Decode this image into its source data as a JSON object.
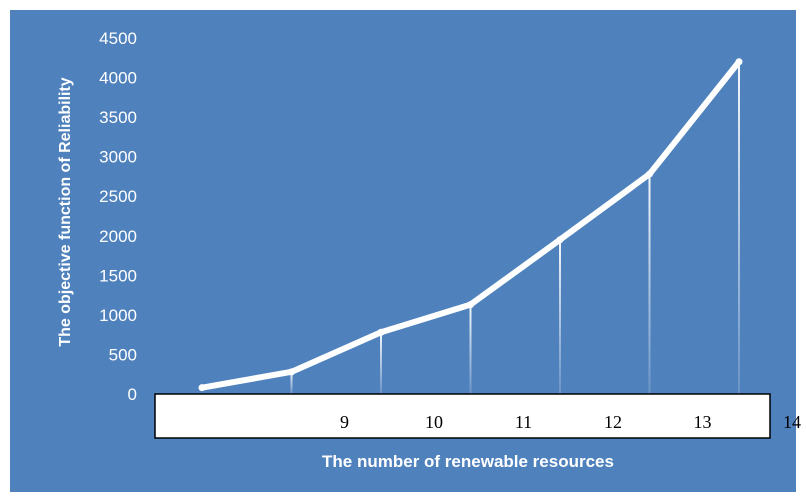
{
  "chart_data": {
    "type": "line",
    "categories": [
      "",
      "9",
      "10",
      "11",
      "12",
      "13",
      "14"
    ],
    "values": [
      80,
      280,
      780,
      1130,
      1950,
      2780,
      4200
    ],
    "xlabel": "The number of renewable resources",
    "ylabel": "The objective function of Reliability",
    "ylim": [
      0,
      4500
    ],
    "yticks": [
      0,
      500,
      1000,
      1500,
      2000,
      2500,
      3000,
      3500,
      4000,
      4500
    ],
    "grid": false,
    "colors": {
      "background": "#4f81bd",
      "line": "#ffffff",
      "axis_box": "#ffffff"
    }
  }
}
